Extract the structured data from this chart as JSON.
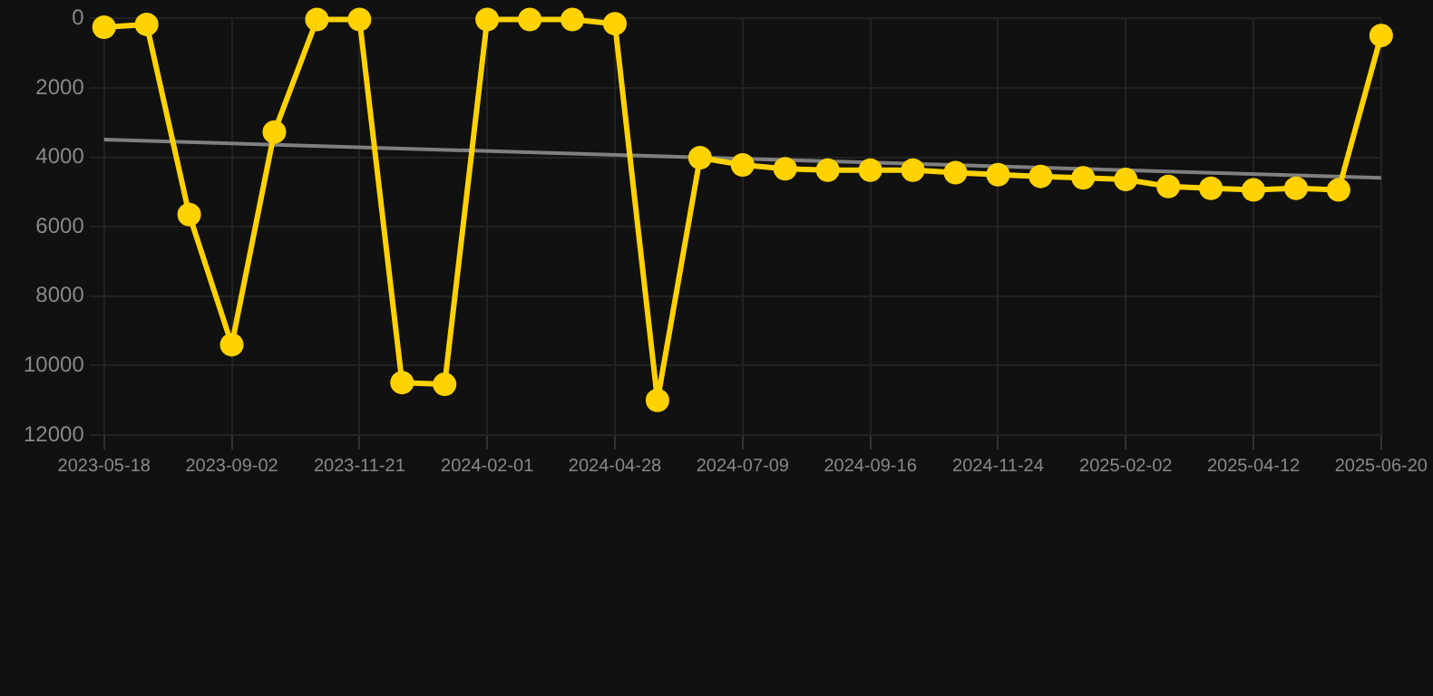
{
  "chart_data": {
    "type": "line",
    "categories": [
      "2023-05-18",
      null,
      null,
      "2023-09-02",
      null,
      null,
      "2023-11-21",
      null,
      null,
      "2024-02-01",
      null,
      null,
      "2024-04-28",
      null,
      null,
      "2024-07-09",
      null,
      null,
      "2024-09-16",
      null,
      null,
      "2024-11-24",
      null,
      null,
      "2025-02-02",
      null,
      null,
      "2025-04-12",
      null,
      null,
      "2025-06-20"
    ],
    "series": [
      {
        "color": "#ffd200",
        "values": [
          250,
          170,
          5650,
          9400,
          3270,
          30,
          30,
          10490,
          10540,
          30,
          30,
          30,
          150,
          11000,
          4010,
          4220,
          4330,
          4370,
          4370,
          4370,
          4440,
          4500,
          4550,
          4590,
          4640,
          4840,
          4890,
          4940,
          4890,
          4940,
          490
        ]
      },
      {
        "type": "line",
        "color": "#808080",
        "marker": "none",
        "values": [
          3490,
          null,
          null,
          null,
          null,
          null,
          null,
          null,
          null,
          null,
          null,
          null,
          null,
          null,
          null,
          null,
          null,
          null,
          null,
          null,
          null,
          null,
          null,
          null,
          null,
          null,
          null,
          null,
          null,
          null,
          4590
        ]
      }
    ],
    "ylim": [
      12000,
      0
    ],
    "yticks": [
      0,
      2000,
      4000,
      6000,
      8000,
      10000,
      12000
    ],
    "grid": true,
    "legend": false,
    "marker": "circle",
    "line_style": "solid"
  }
}
